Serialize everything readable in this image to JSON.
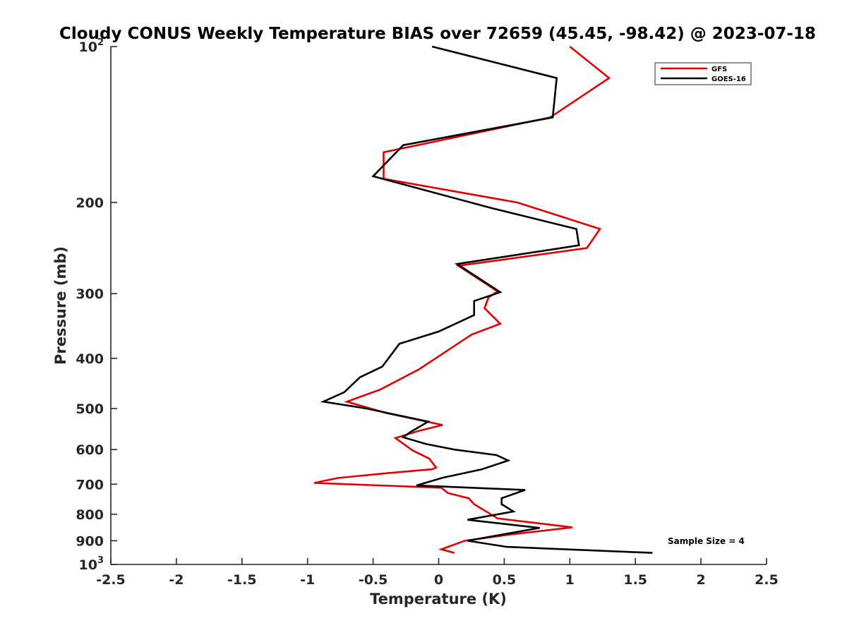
{
  "chart_data": {
    "type": "line",
    "title": "Cloudy CONUS Weekly Temperature BIAS over 72659 (45.45, -98.42) @ 2023-07-18",
    "xlabel": "Temperature (K)",
    "ylabel": "Pressure (mb)",
    "xlim": [
      -2.5,
      2.5
    ],
    "ylim": [
      100,
      1000
    ],
    "y_scale": "log",
    "y_reversed": true,
    "x_ticks": [
      -2.5,
      -2,
      -1.5,
      -1,
      -0.5,
      0,
      0.5,
      1,
      1.5,
      2,
      2.5
    ],
    "x_tick_labels": [
      "-2.5",
      "-2",
      "-1.5",
      "-1",
      "-0.5",
      "0",
      "0.5",
      "1",
      "1.5",
      "2",
      "2.5"
    ],
    "y_ticks": [
      100,
      200,
      300,
      400,
      500,
      600,
      700,
      800,
      900,
      1000
    ],
    "y_tick_labels": [
      {
        "base": "10",
        "exp": "2"
      },
      {
        "base": "200",
        "exp": ""
      },
      {
        "base": "300",
        "exp": ""
      },
      {
        "base": "400",
        "exp": ""
      },
      {
        "base": "500",
        "exp": ""
      },
      {
        "base": "600",
        "exp": ""
      },
      {
        "base": "700",
        "exp": ""
      },
      {
        "base": "800",
        "exp": ""
      },
      {
        "base": "900",
        "exp": ""
      },
      {
        "base": "10",
        "exp": "3"
      }
    ],
    "grid": false,
    "legend_position": "top-right",
    "annotation": "Sample Size = 4",
    "series": [
      {
        "name": "GFS",
        "color": "#e00000",
        "x": [
          1.0,
          1.3,
          0.85,
          -0.42,
          -0.42,
          0.6,
          1.23,
          1.13,
          0.15,
          0.45,
          0.38,
          0.35,
          0.47,
          0.25,
          -0.15,
          -0.45,
          -0.7,
          -0.4,
          0.03,
          -0.15,
          -0.33,
          -0.2,
          -0.07,
          -0.02,
          -0.05,
          -0.38,
          -0.77,
          -0.95,
          0.02,
          0.07,
          0.23,
          0.27,
          0.45,
          1.02,
          0.55,
          0.2,
          0.02,
          0.12
        ],
        "y": [
          100,
          115,
          137,
          160,
          180,
          200,
          225,
          245,
          265,
          297,
          305,
          320,
          343,
          360,
          420,
          460,
          485,
          510,
          538,
          552,
          570,
          602,
          625,
          650,
          655,
          666,
          681,
          696,
          711,
          728,
          745,
          765,
          815,
          848,
          875,
          900,
          935,
          950
        ]
      },
      {
        "name": "GOES-16",
        "color": "#000000",
        "x": [
          -0.05,
          0.9,
          0.87,
          -0.27,
          -0.5,
          0.4,
          1.05,
          1.07,
          0.14,
          0.47,
          0.27,
          0.27,
          0.0,
          -0.3,
          -0.43,
          -0.6,
          -0.72,
          -0.88,
          -0.55,
          -0.08,
          -0.22,
          -0.27,
          -0.1,
          0.12,
          0.44,
          0.53,
          0.33,
          0.03,
          -0.17,
          0.66,
          0.48,
          0.48,
          0.57,
          0.22,
          0.77,
          0.22,
          0.52,
          1.63
        ],
        "y": [
          100,
          115,
          137,
          155,
          178,
          205,
          225,
          242,
          263,
          298,
          310,
          330,
          355,
          375,
          415,
          435,
          465,
          485,
          500,
          530,
          556,
          568,
          585,
          600,
          615,
          630,
          655,
          680,
          704,
          718,
          745,
          765,
          790,
          820,
          850,
          900,
          925,
          950
        ]
      }
    ]
  }
}
